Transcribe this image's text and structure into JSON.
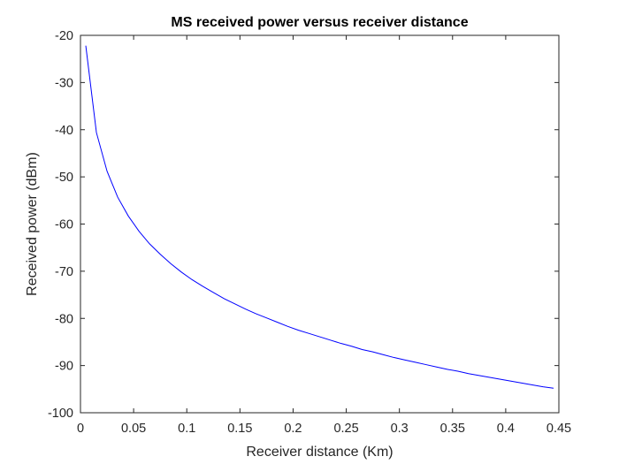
{
  "chart_data": {
    "type": "line",
    "title": "MS received power versus receiver distance",
    "xlabel": "Receiver distance (Km)",
    "ylabel": "Received power (dBm)",
    "xlim": [
      0,
      0.45
    ],
    "ylim": [
      -100,
      -20
    ],
    "xticks": [
      "0",
      "0.05",
      "0.1",
      "0.15",
      "0.2",
      "0.25",
      "0.3",
      "0.35",
      "0.4",
      "0.45"
    ],
    "yticks": [
      "-20",
      "-30",
      "-40",
      "-50",
      "-60",
      "-70",
      "-80",
      "-90",
      "-100"
    ],
    "grid": false,
    "series": [
      {
        "color": "#0000ff",
        "x": [
          0.005,
          0.015,
          0.025,
          0.035,
          0.045,
          0.055,
          0.065,
          0.075,
          0.085,
          0.095,
          0.105,
          0.115,
          0.125,
          0.135,
          0.145,
          0.155,
          0.165,
          0.175,
          0.185,
          0.195,
          0.205,
          0.215,
          0.225,
          0.235,
          0.245,
          0.255,
          0.265,
          0.275,
          0.285,
          0.295,
          0.305,
          0.315,
          0.325,
          0.335,
          0.345,
          0.355,
          0.365,
          0.375,
          0.385,
          0.395,
          0.405,
          0.415,
          0.425,
          0.435,
          0.445
        ],
        "y": [
          -22.2,
          -40.6,
          -48.8,
          -54.3,
          -58.3,
          -61.5,
          -64.2,
          -66.4,
          -68.4,
          -70.2,
          -71.8,
          -73.2,
          -74.5,
          -75.8,
          -76.9,
          -78.0,
          -79.0,
          -79.9,
          -80.8,
          -81.7,
          -82.5,
          -83.2,
          -83.9,
          -84.6,
          -85.3,
          -85.9,
          -86.6,
          -87.1,
          -87.7,
          -88.3,
          -88.8,
          -89.3,
          -89.8,
          -90.3,
          -90.8,
          -91.2,
          -91.7,
          -92.1,
          -92.5,
          -92.9,
          -93.3,
          -93.7,
          -94.1,
          -94.5,
          -94.8
        ]
      }
    ]
  }
}
